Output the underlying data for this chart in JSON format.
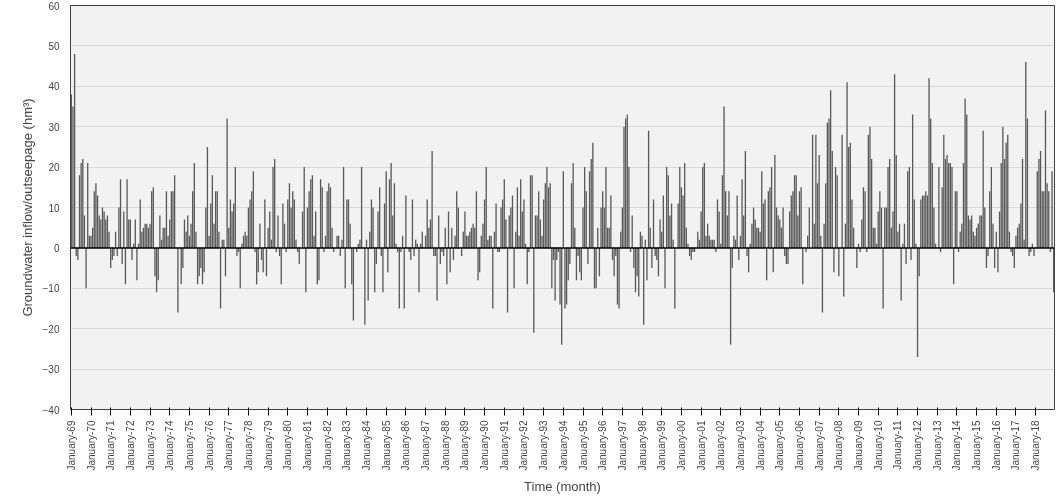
{
  "chart_data": {
    "type": "bar",
    "xlabel": "Time (month)",
    "ylabel": "Groundwater inflow/outseepage (hm³)",
    "color": "#595959",
    "ylim": [
      -40,
      60
    ],
    "yticks": [
      -40,
      -30,
      -20,
      -10,
      0,
      10,
      20,
      30,
      40,
      50,
      60
    ],
    "grid": "y",
    "categories": [
      "January-69",
      null,
      null,
      null,
      null,
      null,
      null,
      null,
      null,
      null,
      null,
      null,
      "January-70",
      null,
      null,
      null,
      null,
      null,
      null,
      null,
      null,
      null,
      null,
      null,
      "January-71",
      null,
      null,
      null,
      null,
      null,
      null,
      null,
      null,
      null,
      null,
      null,
      "January-72",
      null,
      null,
      null,
      null,
      null,
      null,
      null,
      null,
      null,
      null,
      null,
      "January-73",
      null,
      null,
      null,
      null,
      null,
      null,
      null,
      null,
      null,
      null,
      null,
      "January-74",
      null,
      null,
      null,
      null,
      null,
      null,
      null,
      null,
      null,
      null,
      null,
      "January-75",
      null,
      null,
      null,
      null,
      null,
      null,
      null,
      null,
      null,
      null,
      null,
      "January-76",
      null,
      null,
      null,
      null,
      null,
      null,
      null,
      null,
      null,
      null,
      null,
      "January-77",
      null,
      null,
      null,
      null,
      null,
      null,
      null,
      null,
      null,
      null,
      null,
      "January-78",
      null,
      null,
      null,
      null,
      null,
      null,
      null,
      null,
      null,
      null,
      null,
      "January-79",
      null,
      null,
      null,
      null,
      null,
      null,
      null,
      null,
      null,
      null,
      null,
      "January-80",
      null,
      null,
      null,
      null,
      null,
      null,
      null,
      null,
      null,
      null,
      null,
      "January-81",
      null,
      null,
      null,
      null,
      null,
      null,
      null,
      null,
      null,
      null,
      null,
      "January-82",
      null,
      null,
      null,
      null,
      null,
      null,
      null,
      null,
      null,
      null,
      null,
      "January-83",
      null,
      null,
      null,
      null,
      null,
      null,
      null,
      null,
      null,
      null,
      null,
      "January-84",
      null,
      null,
      null,
      null,
      null,
      null,
      null,
      null,
      null,
      null,
      null,
      "January-85",
      null,
      null,
      null,
      null,
      null,
      null,
      null,
      null,
      null,
      null,
      null,
      "January-86",
      null,
      null,
      null,
      null,
      null,
      null,
      null,
      null,
      null,
      null,
      null,
      "January-87",
      null,
      null,
      null,
      null,
      null,
      null,
      null,
      null,
      null,
      null,
      null,
      "January-88",
      null,
      null,
      null,
      null,
      null,
      null,
      null,
      null,
      null,
      null,
      null,
      "January-89",
      null,
      null,
      null,
      null,
      null,
      null,
      null,
      null,
      null,
      null,
      null,
      "January-90",
      null,
      null,
      null,
      null,
      null,
      null,
      null,
      null,
      null,
      null,
      null,
      "January-91",
      null,
      null,
      null,
      null,
      null,
      null,
      null,
      null,
      null,
      null,
      null,
      "January-92",
      null,
      null,
      null,
      null,
      null,
      null,
      null,
      null,
      null,
      null,
      null,
      "January-93",
      null,
      null,
      null,
      null,
      null,
      null,
      null,
      null,
      null,
      null,
      null,
      "January-94",
      null,
      null,
      null,
      null,
      null,
      null,
      null,
      null,
      null,
      null,
      null,
      "January-95",
      null,
      null,
      null,
      null,
      null,
      null,
      null,
      null,
      null,
      null,
      null,
      "January-96",
      null,
      null,
      null,
      null,
      null,
      null,
      null,
      null,
      null,
      null,
      null,
      "January-97",
      null,
      null,
      null,
      null,
      null,
      null,
      null,
      null,
      null,
      null,
      null,
      "January-98",
      null,
      null,
      null,
      null,
      null,
      null,
      null,
      null,
      null,
      null,
      null,
      "January-99",
      null,
      null,
      null,
      null,
      null,
      null,
      null,
      null,
      null,
      null,
      null,
      "January-00",
      null,
      null,
      null,
      null,
      null,
      null,
      null,
      null,
      null,
      null,
      null,
      "January-01",
      null,
      null,
      null,
      null,
      null,
      null,
      null,
      null,
      null,
      null,
      null,
      "January-02",
      null,
      null,
      null,
      null,
      null,
      null,
      null,
      null,
      null,
      null,
      null,
      "January-03",
      null,
      null,
      null,
      null,
      null,
      null,
      null,
      null,
      null,
      null,
      null,
      "January-04",
      null,
      null,
      null,
      null,
      null,
      null,
      null,
      null,
      null,
      null,
      null,
      "January-05",
      null,
      null,
      null,
      null,
      null,
      null,
      null,
      null,
      null,
      null,
      null,
      "January-06",
      null,
      null,
      null,
      null,
      null,
      null,
      null,
      null,
      null,
      null,
      null,
      "January-07",
      null,
      null,
      null,
      null,
      null,
      null,
      null,
      null,
      null,
      null,
      null,
      "January-08",
      null,
      null,
      null,
      null,
      null,
      null,
      null,
      null,
      null,
      null,
      null,
      "January-09",
      null,
      null,
      null,
      null,
      null,
      null,
      null,
      null,
      null,
      null,
      null,
      "January-10",
      null,
      null,
      null,
      null,
      null,
      null,
      null,
      null,
      null,
      null,
      null,
      "January-11",
      null,
      null,
      null,
      null,
      null,
      null,
      null,
      null,
      null,
      null,
      null,
      "January-12",
      null,
      null,
      null,
      null,
      null,
      null,
      null,
      null,
      null,
      null,
      null,
      "January-13",
      null,
      null,
      null,
      null,
      null,
      null,
      null,
      null,
      null,
      null,
      null,
      "January-14",
      null,
      null,
      null,
      null,
      null,
      null,
      null,
      null,
      null,
      null,
      null,
      "January-15",
      null,
      null,
      null,
      null,
      null,
      null,
      null,
      null,
      null,
      null,
      null,
      "January-16",
      null,
      null,
      null,
      null,
      null,
      null,
      null,
      null,
      null,
      null,
      null,
      "January-17",
      null,
      null,
      null,
      null,
      null,
      null,
      null,
      null,
      null,
      null,
      null,
      "January-18",
      null,
      null,
      null,
      null,
      null,
      null,
      null,
      null,
      null,
      null,
      null
    ],
    "values": [
      38,
      35,
      48,
      -2,
      -3,
      18,
      21,
      22,
      8,
      -10,
      21,
      3,
      3,
      5,
      14,
      16,
      13,
      8,
      7,
      10,
      9,
      7,
      8,
      4,
      -5,
      -3,
      -2,
      4,
      -2,
      10,
      17,
      -4,
      9,
      -9,
      17,
      7,
      7,
      -3,
      1,
      7,
      -8,
      1,
      12,
      4,
      5,
      6,
      6,
      5,
      6,
      14,
      15,
      -7,
      -11,
      -8,
      8,
      2,
      5,
      5,
      14,
      3,
      7,
      14,
      14,
      18,
      0,
      -16,
      0,
      -9,
      -5,
      7,
      4,
      8,
      3,
      6,
      14,
      21,
      4,
      -9,
      -7,
      -5,
      -9,
      -6,
      10,
      25,
      3,
      11,
      18,
      6,
      14,
      14,
      4,
      -15,
      2,
      2,
      -7,
      32,
      5,
      12,
      9,
      11,
      20,
      -2,
      -1,
      -10,
      1,
      3,
      4,
      3,
      10,
      12,
      14,
      19,
      -1,
      -9,
      -6,
      6,
      -3,
      -6,
      12,
      -7,
      5,
      9,
      2,
      20,
      22,
      -1,
      8,
      -2,
      -9,
      11,
      6,
      -1,
      12,
      16,
      10,
      14,
      12,
      2,
      -1,
      -4,
      0,
      9,
      20,
      -11,
      10,
      14,
      17,
      18,
      3,
      9,
      -9,
      -8,
      17,
      15,
      -1,
      3,
      14,
      16,
      15,
      5,
      -1,
      0,
      3,
      3,
      -2,
      2,
      20,
      -10,
      12,
      12,
      6,
      -9,
      -18,
      0,
      -1,
      1,
      2,
      20,
      0,
      -19,
      2,
      -13,
      4,
      12,
      10,
      -11,
      -4,
      9,
      15,
      -2,
      -11,
      11,
      19,
      -6,
      17,
      21,
      8,
      16,
      1,
      -1,
      -15,
      -1,
      3,
      -15,
      13,
      0,
      -1,
      -3,
      12,
      -2,
      2,
      1,
      -11,
      1,
      4,
      0,
      3,
      12,
      5,
      7,
      24,
      -2,
      -2,
      -13,
      8,
      -4,
      -1,
      -2,
      5,
      -9,
      9,
      -6,
      5,
      -3,
      3,
      14,
      10,
      0,
      -2,
      4,
      9,
      3,
      3,
      4,
      5,
      6,
      5,
      14,
      -8,
      -6,
      3,
      6,
      12,
      20,
      2,
      3,
      3,
      -15,
      4,
      11,
      -1,
      -1,
      10,
      12,
      17,
      7,
      -16,
      8,
      10,
      13,
      -10,
      4,
      15,
      3,
      17,
      9,
      12,
      1,
      -9,
      -1,
      18,
      18,
      -21,
      8,
      8,
      14,
      7,
      3,
      12,
      16,
      20,
      15,
      16,
      -10,
      -3,
      -13,
      -3,
      -1,
      -14,
      -24,
      19,
      -15,
      -14,
      -8,
      -4,
      16,
      21,
      5,
      -8,
      -2,
      -6,
      -8,
      10,
      20,
      14,
      -4,
      19,
      22,
      26,
      -10,
      -10,
      5,
      -7,
      10,
      14,
      10,
      20,
      5,
      5,
      13,
      -3,
      -7,
      -2,
      -14,
      -15,
      4,
      10,
      30,
      32,
      33,
      20,
      -1,
      8,
      -5,
      -11,
      -7,
      -12,
      4,
      3,
      -19,
      2,
      -8,
      29,
      5,
      -5,
      12,
      -2,
      -3,
      -7,
      7,
      4,
      13,
      -10,
      20,
      18,
      8,
      11,
      2,
      -15,
      0,
      11,
      20,
      15,
      13,
      21,
      5,
      1,
      -2,
      -3,
      -1,
      -1,
      0,
      4,
      2,
      9,
      20,
      21,
      3,
      6,
      3,
      2,
      2,
      2,
      -1,
      12,
      9,
      1,
      18,
      35,
      14,
      8,
      14,
      -24,
      -5,
      3,
      2,
      13,
      -3,
      3,
      17,
      8,
      24,
      -2,
      -6,
      1,
      6,
      10,
      7,
      5,
      5,
      4,
      19,
      11,
      12,
      -8,
      14,
      15,
      20,
      -6,
      23,
      10,
      8,
      7,
      5,
      10,
      -2,
      -4,
      -4,
      9,
      13,
      14,
      18,
      18,
      8,
      14,
      15,
      -9,
      0,
      -1,
      3,
      10,
      0,
      28,
      6,
      28,
      16,
      23,
      3,
      -16,
      6,
      16,
      31,
      32,
      39,
      24,
      -6,
      20,
      18,
      -7,
      0,
      28,
      -12,
      6,
      41,
      25,
      26,
      12,
      5,
      0,
      -5,
      1,
      -1,
      7,
      15,
      14,
      -1,
      28,
      30,
      22,
      5,
      5,
      1,
      9,
      14,
      10,
      -15,
      10,
      10,
      20,
      22,
      5,
      9,
      43,
      23,
      4,
      6,
      -13,
      1,
      6,
      -4,
      19,
      20,
      -3,
      33,
      12,
      1,
      -27,
      -7,
      12,
      13,
      13,
      14,
      13,
      42,
      32,
      21,
      10,
      1,
      0,
      20,
      -1,
      15,
      28,
      22,
      23,
      21,
      21,
      20,
      -9,
      14,
      14,
      -1,
      4,
      6,
      21,
      37,
      33,
      8,
      7,
      8,
      4,
      3,
      5,
      6,
      8,
      8,
      29,
      10,
      -5,
      -2,
      14,
      20,
      6,
      -5,
      4,
      -6,
      9,
      21,
      30,
      22,
      26,
      28,
      4,
      -1,
      -2,
      -5,
      3,
      5,
      6,
      11,
      22,
      2,
      46,
      32,
      -2,
      -1,
      1,
      -2,
      0,
      19,
      22,
      24,
      14,
      14,
      34,
      16,
      14,
      -1,
      19,
      -11
    ]
  }
}
